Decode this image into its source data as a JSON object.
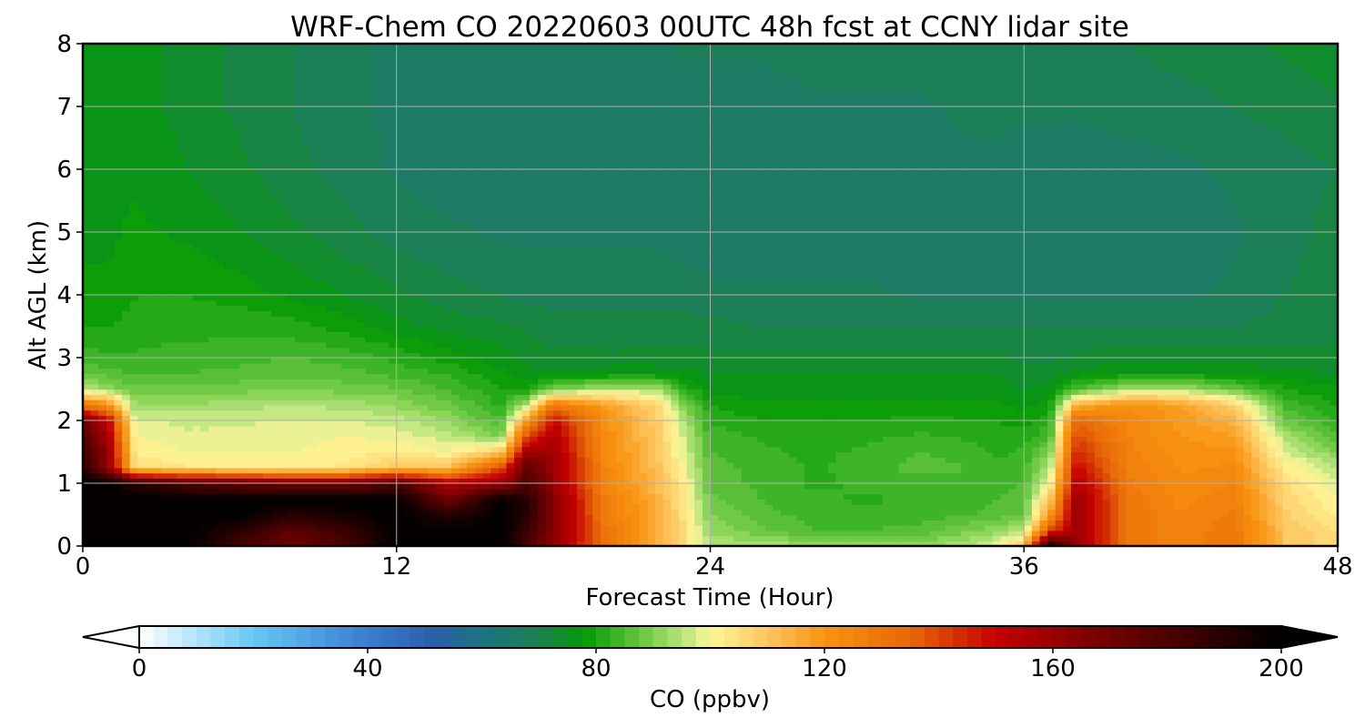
{
  "chart_data": {
    "type": "heatmap",
    "title": "WRF-Chem CO  20220603 00UTC 48h fcst at CCNY lidar site",
    "xlabel": "Forecast Time (Hour)",
    "ylabel": "Alt AGL (km)",
    "xlim": [
      0,
      48
    ],
    "ylim": [
      0,
      8
    ],
    "xticks": [
      0,
      12,
      24,
      36,
      48
    ],
    "yticks": [
      0,
      1,
      2,
      3,
      4,
      5,
      6,
      7,
      8
    ],
    "grid": true,
    "x": [
      0,
      1,
      2,
      4,
      6,
      8,
      10,
      12,
      14,
      16,
      17,
      18,
      20,
      22,
      23,
      24,
      26,
      28,
      30,
      32,
      34,
      35,
      36,
      37,
      38,
      40,
      42,
      44,
      46,
      48
    ],
    "y": [
      0,
      0.25,
      0.5,
      0.75,
      1,
      1.25,
      1.5,
      1.75,
      2,
      2.25,
      2.5,
      2.75,
      3,
      3.5,
      4,
      5,
      6,
      7,
      8
    ],
    "z": [
      [
        200,
        200,
        200,
        200,
        180,
        170,
        180,
        200,
        200,
        200,
        180,
        160,
        130,
        115,
        105,
        95,
        95,
        92,
        92,
        92,
        95,
        100,
        110,
        200,
        160,
        130,
        125,
        130,
        110,
        105
      ],
      [
        200,
        200,
        200,
        200,
        190,
        175,
        185,
        200,
        200,
        200,
        185,
        165,
        130,
        115,
        105,
        92,
        88,
        85,
        85,
        86,
        90,
        92,
        95,
        140,
        160,
        130,
        125,
        130,
        110,
        105
      ],
      [
        200,
        200,
        200,
        200,
        200,
        190,
        195,
        200,
        190,
        200,
        190,
        165,
        128,
        115,
        104,
        90,
        86,
        84,
        83,
        84,
        85,
        86,
        88,
        120,
        160,
        130,
        125,
        128,
        108,
        102
      ],
      [
        200,
        200,
        200,
        200,
        200,
        200,
        200,
        200,
        170,
        200,
        190,
        165,
        127,
        114,
        103,
        88,
        85,
        83,
        82,
        83,
        84,
        85,
        86,
        110,
        160,
        130,
        124,
        127,
        107,
        100
      ],
      [
        200,
        200,
        190,
        180,
        175,
        170,
        170,
        180,
        155,
        160,
        180,
        160,
        125,
        112,
        102,
        87,
        84,
        82,
        83,
        84,
        84,
        84,
        85,
        100,
        155,
        128,
        123,
        125,
        105,
        98
      ],
      [
        190,
        160,
        105,
        103,
        102,
        102,
        103,
        110,
        112,
        140,
        175,
        160,
        124,
        111,
        100,
        86,
        84,
        82,
        84,
        86,
        85,
        83,
        84,
        95,
        150,
        127,
        122,
        123,
        102,
        95
      ],
      [
        185,
        160,
        102,
        100,
        100,
        100,
        101,
        103,
        100,
        110,
        160,
        158,
        123,
        110,
        98,
        85,
        83,
        82,
        83,
        85,
        84,
        82,
        83,
        90,
        145,
        126,
        121,
        121,
        98,
        90
      ],
      [
        180,
        155,
        100,
        98,
        98,
        99,
        100,
        99,
        96,
        90,
        140,
        155,
        122,
        109,
        97,
        84,
        82,
        81,
        82,
        83,
        82,
        81,
        81,
        85,
        140,
        125,
        120,
        118,
        94,
        86
      ],
      [
        170,
        150,
        98,
        97,
        97,
        98,
        98,
        96,
        92,
        85,
        120,
        150,
        121,
        108,
        95,
        82,
        80,
        80,
        80,
        81,
        80,
        80,
        79,
        82,
        135,
        124,
        119,
        114,
        88,
        82
      ],
      [
        130,
        120,
        92,
        93,
        94,
        95,
        94,
        92,
        88,
        82,
        95,
        130,
        118,
        106,
        90,
        80,
        78,
        78,
        78,
        78,
        78,
        78,
        77,
        79,
        115,
        122,
        118,
        108,
        84,
        80
      ],
      [
        95,
        92,
        88,
        88,
        89,
        90,
        89,
        88,
        85,
        80,
        80,
        90,
        95,
        95,
        82,
        77,
        76,
        76,
        76,
        76,
        76,
        76,
        75,
        76,
        85,
        95,
        95,
        88,
        80,
        78
      ],
      [
        88,
        86,
        85,
        85,
        86,
        87,
        86,
        84,
        82,
        78,
        76,
        76,
        77,
        77,
        76,
        75,
        75,
        75,
        75,
        75,
        75,
        75,
        74,
        74,
        76,
        78,
        78,
        77,
        76,
        75
      ],
      [
        84,
        83,
        83,
        84,
        84,
        85,
        84,
        82,
        79,
        76,
        74,
        73,
        73,
        73,
        73,
        73,
        73,
        73,
        73,
        73,
        73,
        73,
        72,
        72,
        73,
        74,
        74,
        74,
        73,
        73
      ],
      [
        80,
        80,
        81,
        81,
        82,
        81,
        79,
        76,
        74,
        73,
        72,
        71,
        71,
        71,
        71,
        71,
        70,
        70,
        70,
        70,
        70,
        70,
        70,
        70,
        70,
        70,
        70,
        70,
        71,
        72
      ],
      [
        78,
        78,
        80,
        80,
        79,
        77,
        75,
        73,
        71,
        70,
        69,
        69,
        69,
        69,
        69,
        68,
        68,
        68,
        68,
        67,
        67,
        67,
        67,
        67,
        67,
        67,
        67,
        68,
        70,
        72
      ],
      [
        77,
        77,
        78,
        77,
        75,
        73,
        71,
        69,
        68,
        67,
        67,
        67,
        67,
        67,
        66,
        66,
        66,
        66,
        66,
        66,
        66,
        66,
        66,
        66,
        66,
        66,
        66,
        67,
        69,
        71
      ],
      [
        77,
        77,
        77,
        75,
        73,
        71,
        69,
        67,
        66,
        66,
        66,
        66,
        66,
        66,
        66,
        66,
        66,
        66,
        66,
        67,
        67,
        67,
        66,
        66,
        65,
        66,
        67,
        68,
        69,
        70
      ],
      [
        77,
        77,
        76,
        74,
        72,
        70,
        68,
        67,
        66,
        66,
        66,
        66,
        66,
        66,
        66,
        66,
        66,
        67,
        67,
        67,
        68,
        68,
        68,
        68,
        68,
        69,
        69,
        70,
        71,
        72
      ],
      [
        77,
        77,
        76,
        74,
        72,
        70,
        68,
        67,
        67,
        67,
        67,
        67,
        67,
        67,
        68,
        68,
        68,
        69,
        69,
        69,
        70,
        70,
        70,
        70,
        70,
        70,
        71,
        72,
        73,
        74
      ]
    ],
    "colorbar": {
      "label": "CO  (ppbv)",
      "vmin": 0,
      "vmax": 200,
      "ticks": [
        0,
        40,
        80,
        120,
        160,
        200
      ],
      "extend": "both",
      "stops": [
        {
          "v": 0,
          "c": "#ffffff"
        },
        {
          "v": 20,
          "c": "#66c8f5"
        },
        {
          "v": 40,
          "c": "#3a7dd0"
        },
        {
          "v": 52,
          "c": "#2a5ea8"
        },
        {
          "v": 58,
          "c": "#1f6f8c"
        },
        {
          "v": 70,
          "c": "#1c8050"
        },
        {
          "v": 78,
          "c": "#049a04"
        },
        {
          "v": 90,
          "c": "#7ed04e"
        },
        {
          "v": 97,
          "c": "#cdeb8c"
        },
        {
          "v": 100,
          "c": "#fff799"
        },
        {
          "v": 110,
          "c": "#fec560"
        },
        {
          "v": 120,
          "c": "#f89410"
        },
        {
          "v": 135,
          "c": "#e86808"
        },
        {
          "v": 150,
          "c": "#c40000"
        },
        {
          "v": 165,
          "c": "#840000"
        },
        {
          "v": 185,
          "c": "#3a0000"
        },
        {
          "v": 200,
          "c": "#000000"
        }
      ]
    }
  }
}
